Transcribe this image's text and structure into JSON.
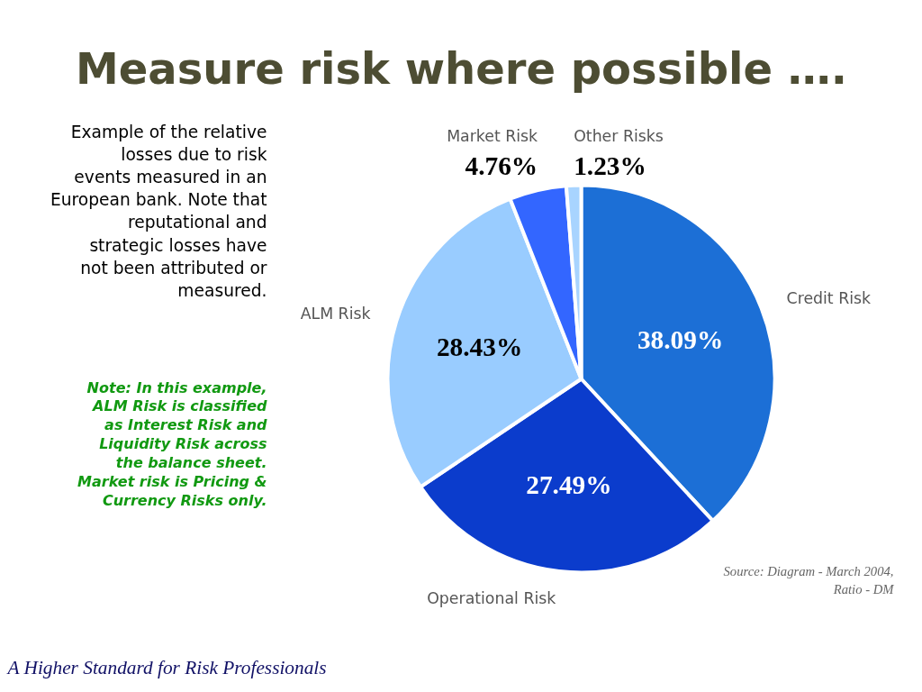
{
  "chart_data": {
    "type": "pie",
    "title": "Measure risk where possible ….",
    "categories": [
      "Credit Risk",
      "Operational Risk",
      "ALM Risk",
      "Market Risk",
      "Other Risks"
    ],
    "values": [
      38.09,
      27.49,
      28.43,
      4.76,
      1.23
    ],
    "colors": [
      "#1c6fd6",
      "#0b3ccc",
      "#99ccff",
      "#3366ff",
      "#a8d4ff"
    ],
    "value_labels": [
      "38.09%",
      "27.49%",
      "28.43%",
      "4.76%",
      "1.23%"
    ],
    "legend": false,
    "annotations": [
      "Example of the relative losses due to risk events measured in an European bank. Note that reputational and strategic losses have not been attributed or measured.",
      "Note: In this example, ALM Risk is classified as Interest Risk and Liquidity Risk across the balance sheet. Market risk is Pricing & Currency Risks only.",
      "Source: Diagram - March 2004, Ratio - DM",
      "A Higher Standard for Risk Professionals"
    ]
  }
}
